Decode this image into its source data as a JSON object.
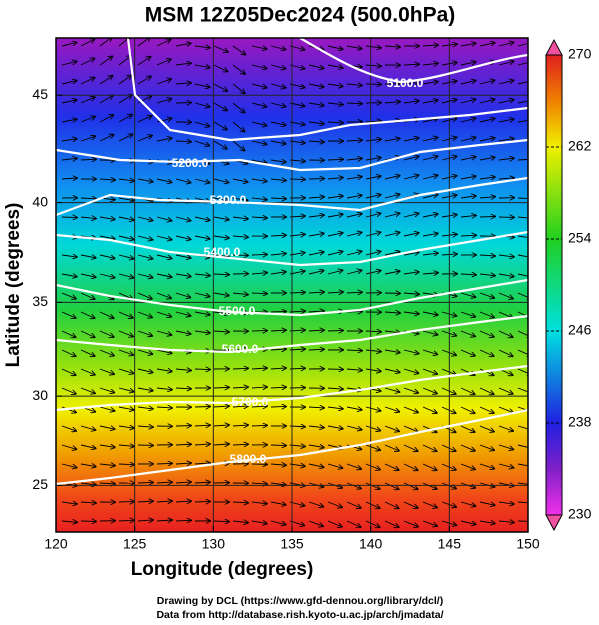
{
  "chart_data": {
    "type": "contour-map",
    "title": "MSM 12Z05Dec2024 (500.0hPa)",
    "x_label": "Longitude (degrees)",
    "y_label": "Latitude  (degrees)",
    "xlim": [
      120,
      150
    ],
    "xticks": [
      120,
      125,
      130,
      135,
      140,
      145,
      150
    ],
    "ylim": [
      22.3,
      47.5
    ],
    "yticks": [
      25,
      30,
      35,
      40,
      45
    ],
    "mercator": true,
    "grid": true,
    "colorbar": {
      "lim": [
        230,
        270
      ],
      "ticks": [
        230,
        238,
        246,
        254,
        262,
        270
      ]
    },
    "contours": [
      {
        "value": 5100,
        "label": "5100.0"
      },
      {
        "value": 5200,
        "label": "5200.0"
      },
      {
        "value": 5300,
        "label": "5300.0"
      },
      {
        "value": 5400,
        "label": "5400.0"
      },
      {
        "value": 5500,
        "label": "5500.0"
      },
      {
        "value": 5600,
        "label": "5600.0"
      },
      {
        "value": 5700,
        "label": "5700.0"
      },
      {
        "value": 5800,
        "label": "5800.0"
      }
    ],
    "footer": [
      "Drawing by DCL (https://www.gfd-dennou.org/library/dcl/)",
      "Data from http://database.rish.kyoto-u.ac.jp/arch/jmadata/"
    ]
  }
}
